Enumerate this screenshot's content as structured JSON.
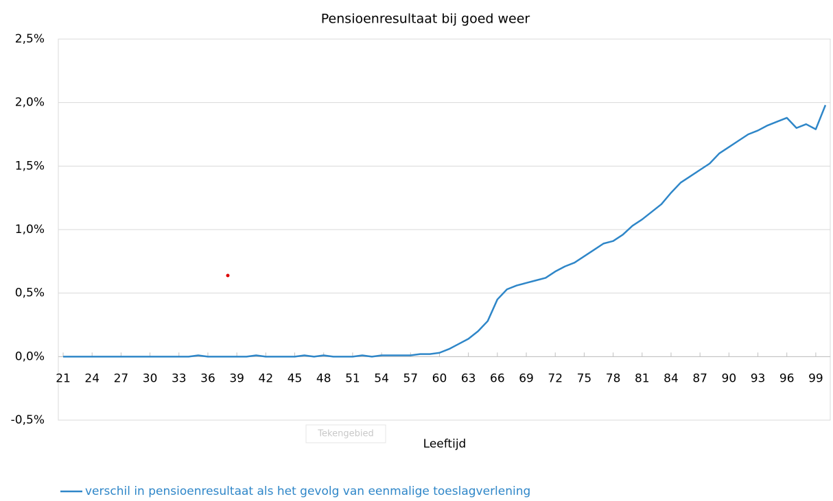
{
  "chart_data": {
    "type": "line",
    "title": "Pensioenresultaat bij goed weer",
    "x_label": "Leeftijd",
    "tooltip": "Tekengebied",
    "x": [
      21,
      22,
      23,
      24,
      25,
      26,
      27,
      28,
      29,
      30,
      31,
      32,
      33,
      34,
      35,
      36,
      37,
      38,
      39,
      40,
      41,
      42,
      43,
      44,
      45,
      46,
      47,
      48,
      49,
      50,
      51,
      52,
      53,
      54,
      55,
      56,
      57,
      58,
      59,
      60,
      61,
      62,
      63,
      64,
      65,
      66,
      67,
      68,
      69,
      70,
      71,
      72,
      73,
      74,
      75,
      76,
      77,
      78,
      79,
      80,
      81,
      82,
      83,
      84,
      85,
      86,
      87,
      88,
      89,
      90,
      91,
      92,
      93,
      94,
      95,
      96,
      97,
      98,
      99,
      100
    ],
    "series": [
      {
        "name": "verschil in pensioenresultaat als het gevolg van eenmalige toeslagverlening",
        "color": "#2e86c8",
        "values": [
          0,
          0,
          0,
          0,
          0,
          0,
          0,
          0,
          0,
          0,
          0,
          0,
          0,
          0,
          0.01,
          0,
          0,
          0,
          0,
          0,
          0.01,
          0,
          0,
          0,
          0,
          0.01,
          0,
          0.01,
          0,
          0,
          0,
          0.01,
          0,
          0.01,
          0.01,
          0.01,
          0.01,
          0.02,
          0.02,
          0.03,
          0.06,
          0.1,
          0.14,
          0.2,
          0.28,
          0.45,
          0.53,
          0.56,
          0.58,
          0.6,
          0.62,
          0.67,
          0.71,
          0.74,
          0.79,
          0.84,
          0.89,
          0.91,
          0.96,
          1.03,
          1.08,
          1.14,
          1.2,
          1.29,
          1.37,
          1.42,
          1.47,
          1.52,
          1.6,
          1.65,
          1.7,
          1.75,
          1.78,
          1.82,
          1.85,
          1.88,
          1.8,
          1.83,
          1.79,
          1.98
        ]
      }
    ],
    "xlim": [
      20.5,
      100.5
    ],
    "xticks": [
      21,
      24,
      27,
      30,
      33,
      36,
      39,
      42,
      45,
      48,
      51,
      54,
      57,
      60,
      63,
      66,
      69,
      72,
      75,
      78,
      81,
      84,
      87,
      90,
      93,
      96,
      99
    ],
    "ylim": [
      -0.5,
      2.5
    ],
    "yticks": [
      {
        "value": -0.5,
        "label": "-0,5%"
      },
      {
        "value": 0,
        "label": "0,0%"
      },
      {
        "value": 0.5,
        "label": "0,5%"
      },
      {
        "value": 1,
        "label": "1,0%"
      },
      {
        "value": 1.5,
        "label": "1,5%"
      },
      {
        "value": 2,
        "label": "2,0%"
      },
      {
        "value": 2.5,
        "label": "2,5%"
      }
    ],
    "grid": true,
    "legend": "bottom-left"
  }
}
